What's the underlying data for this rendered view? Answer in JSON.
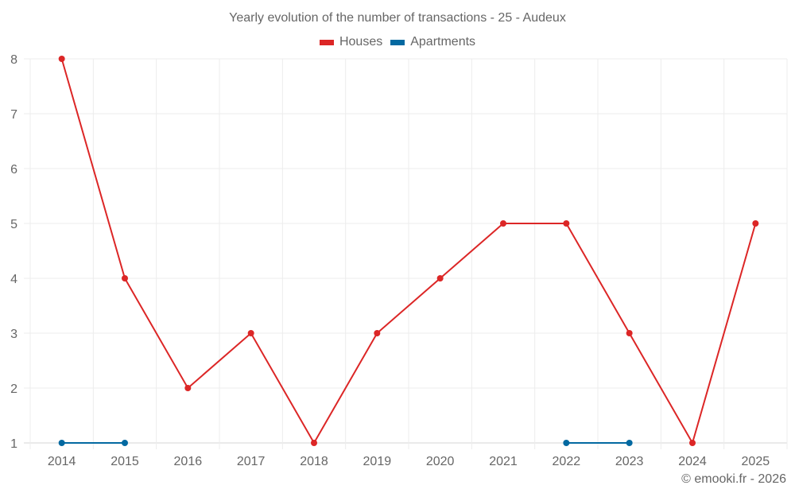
{
  "chart": {
    "title": "Yearly evolution of the number of transactions - 25 - Audeux",
    "credit": "© emooki.fr - 2026",
    "legend": [
      {
        "label": "Houses",
        "color": "#dc2626"
      },
      {
        "label": "Apartments",
        "color": "#0369a1"
      }
    ]
  },
  "chart_data": {
    "type": "line",
    "title": "Yearly evolution of the number of transactions - 25 - Audeux",
    "xlabel": "",
    "ylabel": "",
    "categories": [
      "2014",
      "2015",
      "2016",
      "2017",
      "2018",
      "2019",
      "2020",
      "2021",
      "2022",
      "2023",
      "2024",
      "2025"
    ],
    "series": [
      {
        "name": "Houses",
        "color": "#dc2626",
        "values": [
          8,
          4,
          2,
          3,
          1,
          3,
          4,
          5,
          5,
          3,
          1,
          5
        ]
      },
      {
        "name": "Apartments",
        "color": "#0369a1",
        "values": [
          1,
          1,
          null,
          null,
          null,
          null,
          null,
          null,
          1,
          1,
          null,
          null
        ]
      }
    ],
    "ylim": [
      1,
      8
    ],
    "yticks": [
      1,
      2,
      3,
      4,
      5,
      6,
      7,
      8
    ],
    "grid": true,
    "legend_position": "top"
  }
}
